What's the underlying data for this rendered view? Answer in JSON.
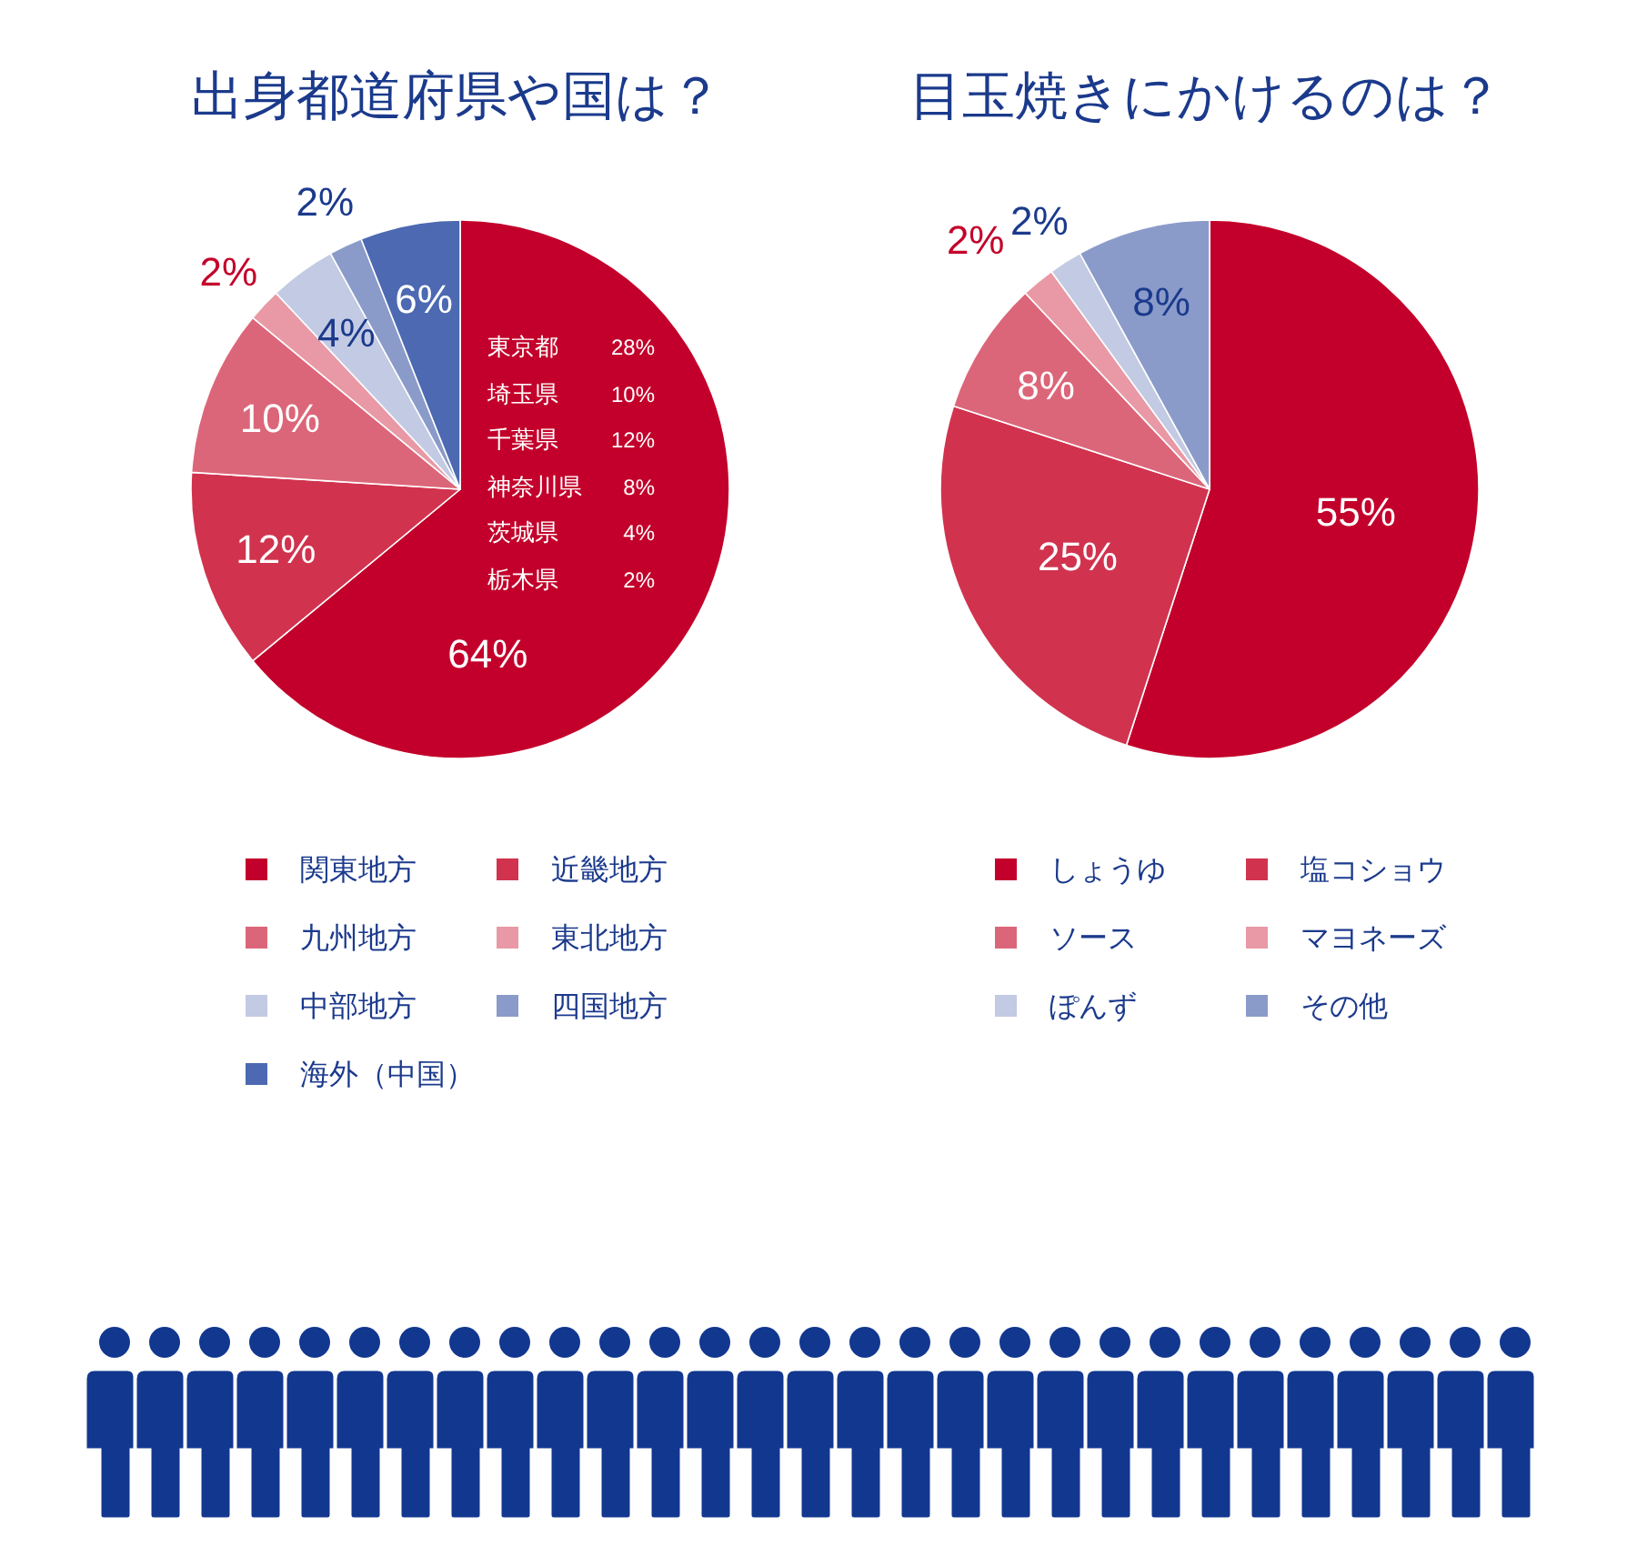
{
  "chart_data": [
    {
      "type": "pie",
      "title": "出身都道府県や国は？",
      "categories": [
        "関東地方",
        "近畿地方",
        "九州地方",
        "東北地方",
        "中部地方",
        "四国地方",
        "海外（中国）"
      ],
      "values": [
        64,
        12,
        10,
        2,
        4,
        2,
        6
      ],
      "colors": [
        "#c3002b",
        "#d1334f",
        "#dc6679",
        "#e899a5",
        "#c3cae3",
        "#8a9bca",
        "#4c69b1"
      ],
      "value_labels": [
        "64%",
        "12%",
        "10%",
        "2%",
        "4%",
        "2%",
        "6%"
      ],
      "legend": "bottom",
      "annotations": [
        "東京都 28%",
        "埼玉県 10%",
        "千葉県 12%",
        "神奈川県 8%",
        "茨城県 4%",
        "栃木県 2%"
      ]
    },
    {
      "type": "pie",
      "title": "目玉焼きにかけるのは？",
      "categories": [
        "しょうゆ",
        "塩コショウ",
        "ソース",
        "マヨネーズ",
        "ぽんず",
        "その他"
      ],
      "values": [
        55,
        25,
        8,
        2,
        2,
        8
      ],
      "colors": [
        "#c3002b",
        "#d1334f",
        "#dc6679",
        "#e899a5",
        "#c3cae3",
        "#8a9bca"
      ],
      "value_labels": [
        "55%",
        "25%",
        "8%",
        "2%",
        "2%",
        "8%"
      ],
      "legend": "bottom"
    }
  ]
}
